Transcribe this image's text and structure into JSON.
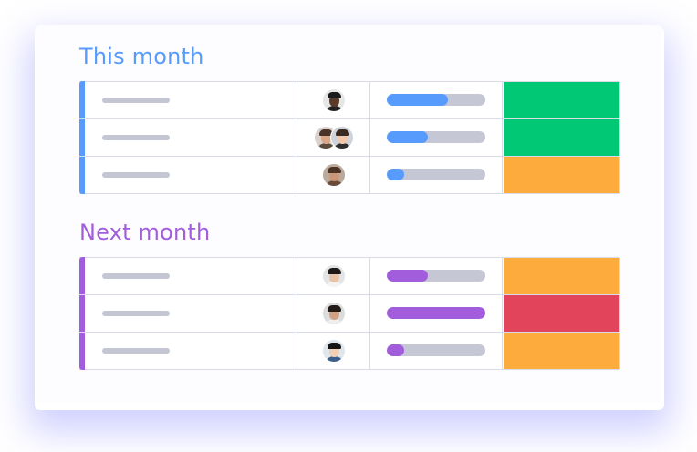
{
  "colors": {
    "this_month_accent": "#579bfc",
    "next_month_accent": "#a25ddc",
    "status_done": "#00c875",
    "status_working": "#fdab3d",
    "status_stuck": "#e2445c"
  },
  "groups": [
    {
      "title": "This month",
      "color": "#579bfc",
      "rows": [
        {
          "people": [
            {
              "skin": "#5b3a29",
              "hair": "#1b1b1b",
              "shirt": "#222222",
              "bg": "#e6e6e6"
            }
          ],
          "progress": 0.62,
          "status_color": "#00c875"
        },
        {
          "people": [
            {
              "skin": "#d9a788",
              "hair": "#4a3226",
              "shirt": "#5c4a3a",
              "bg": "#d9d2cc"
            },
            {
              "skin": "#f0c8ad",
              "hair": "#3a2a22",
              "shirt": "#2e2e2e",
              "bg": "#cfd3da"
            }
          ],
          "progress": 0.42,
          "status_color": "#00c875"
        },
        {
          "people": [
            {
              "skin": "#c99778",
              "hair": "#4b3427",
              "shirt": "#6a4b3a",
              "bg": "#bba99c"
            }
          ],
          "progress": 0.18,
          "status_color": "#fdab3d"
        }
      ]
    },
    {
      "title": "Next month",
      "color": "#a25ddc",
      "rows": [
        {
          "people": [
            {
              "skin": "#e8c3a6",
              "hair": "#1f1a18",
              "shirt": "#f4f4f4",
              "bg": "#e4e4e4"
            }
          ],
          "progress": 0.42,
          "status_color": "#fdab3d"
        },
        {
          "people": [
            {
              "skin": "#d3a184",
              "hair": "#241a16",
              "shirt": "#eeeeee",
              "bg": "#dcdcdc"
            }
          ],
          "progress": 1.0,
          "status_color": "#e2445c"
        },
        {
          "people": [
            {
              "skin": "#f1cfb5",
              "hair": "#151515",
              "shirt": "#3b5f8a",
              "bg": "#dfe6ec"
            }
          ],
          "progress": 0.18,
          "status_color": "#fdab3d"
        }
      ]
    }
  ]
}
